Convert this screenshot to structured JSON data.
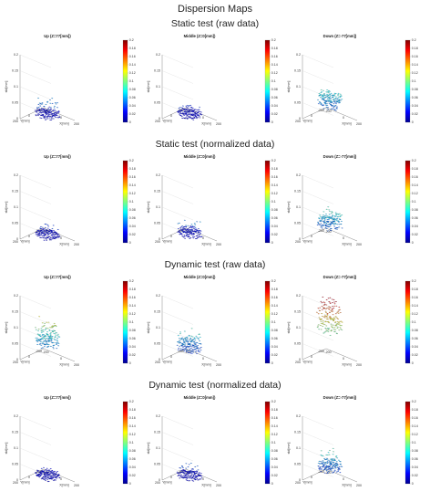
{
  "figure_title": "Dispersion Maps",
  "colors": {
    "colormap": [
      "#00008f",
      "#0000ff",
      "#007fff",
      "#00ffff",
      "#7fff7f",
      "#ffff00",
      "#ff7f00",
      "#ff0000",
      "#7f0000"
    ],
    "axis": "#555555",
    "grid": "#cccccc"
  },
  "colorbar_ticks": [
    "0",
    "0.02",
    "0.04",
    "0.06",
    "0.08",
    "0.1",
    "0.12",
    "0.14",
    "0.16",
    "0.18",
    "0.2"
  ],
  "chart_data": [
    {
      "type": "surface3d",
      "section": "Static test (raw data)",
      "panels": [
        {
          "title": "Up (Z=77[mm])",
          "z_ticks": [
            "0",
            "0.05",
            "0.1",
            "0.15",
            "0.2"
          ],
          "xlabel": "X[mm]",
          "ylabel": "Y[mm]",
          "zlabel": "std[mm]",
          "x_ticks": [
            "-200",
            "0",
            "200"
          ],
          "y_ticks": [
            "-200",
            "0",
            "200"
          ],
          "clim": [
            0,
            0.2
          ],
          "zlim": [
            0,
            0.2
          ],
          "peak": 0.06,
          "mean": 0.02
        },
        {
          "title": "Middle (Z=0[mm])",
          "z_ticks": [
            "0",
            "0.05",
            "0.1",
            "0.15",
            "0.2"
          ],
          "xlabel": "X[mm]",
          "ylabel": "Y[mm]",
          "zlabel": "std[mm]",
          "x_ticks": [
            "-200",
            "0",
            "200"
          ],
          "y_ticks": [
            "-200",
            "0",
            "200"
          ],
          "clim": [
            0,
            0.2
          ],
          "zlim": [
            0,
            0.2
          ],
          "peak": 0.04,
          "mean": 0.02
        },
        {
          "title": "Down (Z=-77[mm])",
          "z_ticks": [
            "0",
            "0.05",
            "0.1",
            "0.15",
            "0.2"
          ],
          "xlabel": "X[mm]",
          "ylabel": "Y[mm]",
          "zlabel": "std[mm]",
          "x_ticks": [
            "-200",
            "0",
            "200"
          ],
          "y_ticks": [
            "-200",
            "0",
            "200"
          ],
          "clim": [
            0,
            0.2
          ],
          "zlim": [
            0,
            0.2
          ],
          "peak": 0.09,
          "mean": 0.06
        }
      ]
    },
    {
      "type": "surface3d",
      "section": "Static test (normalized data)",
      "panels": [
        {
          "title": "Up (Z=77[mm])",
          "z_ticks": [
            "0",
            "0.05",
            "0.1",
            "0.15",
            "0.2"
          ],
          "xlabel": "X[mm]",
          "ylabel": "Y[mm]",
          "zlabel": "std[mm]",
          "x_ticks": [
            "-200",
            "0",
            "200"
          ],
          "y_ticks": [
            "-200",
            "0",
            "200"
          ],
          "clim": [
            0,
            0.2
          ],
          "zlim": [
            0,
            0.2
          ],
          "peak": 0.04,
          "mean": 0.02
        },
        {
          "title": "Middle (Z=0[mm])",
          "z_ticks": [
            "0",
            "0.05",
            "0.1",
            "0.15",
            "0.2"
          ],
          "xlabel": "X[mm]",
          "ylabel": "Y[mm]",
          "zlabel": "std[mm]",
          "x_ticks": [
            "-200",
            "0",
            "200"
          ],
          "y_ticks": [
            "-200",
            "0",
            "200"
          ],
          "clim": [
            0,
            0.2
          ],
          "zlim": [
            0,
            0.2
          ],
          "peak": 0.06,
          "mean": 0.025
        },
        {
          "title": "Down (Z=-77[mm])",
          "z_ticks": [
            "0",
            "0.05",
            "0.1",
            "0.15",
            "0.2"
          ],
          "xlabel": "X[mm]",
          "ylabel": "Y[mm]",
          "zlabel": "std[mm]",
          "x_ticks": [
            "-200",
            "0",
            "200"
          ],
          "y_ticks": [
            "-200",
            "0",
            "200"
          ],
          "clim": [
            0,
            0.2
          ],
          "zlim": [
            0,
            0.2
          ],
          "peak": 0.09,
          "mean": 0.06
        }
      ]
    },
    {
      "type": "surface3d",
      "section": "Dynamic test (raw data)",
      "panels": [
        {
          "title": "Up (Z=77[mm])",
          "z_ticks": [
            "0",
            "0.05",
            "0.1",
            "0.15",
            "0.2"
          ],
          "xlabel": "X[mm]",
          "ylabel": "Y[mm]",
          "zlabel": "std[mm]",
          "x_ticks": [
            "-200",
            "0",
            "200"
          ],
          "y_ticks": [
            "-200",
            "0",
            "200"
          ],
          "clim": [
            0,
            0.2
          ],
          "zlim": [
            0,
            0.2
          ],
          "peak": 0.13,
          "mean": 0.07
        },
        {
          "title": "Middle (Z=0[mm])",
          "z_ticks": [
            "0",
            "0.05",
            "0.1",
            "0.15",
            "0.2"
          ],
          "xlabel": "X[mm]",
          "ylabel": "Y[mm]",
          "zlabel": "std[mm]",
          "x_ticks": [
            "-200",
            "0",
            "200"
          ],
          "y_ticks": [
            "-200",
            "0",
            "200"
          ],
          "clim": [
            0,
            0.2
          ],
          "zlim": [
            0,
            0.2
          ],
          "peak": 0.09,
          "mean": 0.05
        },
        {
          "title": "Down (Z=-77[mm])",
          "z_ticks": [
            "0",
            "0.05",
            "0.1",
            "0.15",
            "0.2"
          ],
          "xlabel": "X[mm]",
          "ylabel": "Y[mm]",
          "zlabel": "std[mm]",
          "x_ticks": [
            "-200",
            "0",
            "200"
          ],
          "y_ticks": [
            "-200",
            "0",
            "200"
          ],
          "clim": [
            0,
            0.2
          ],
          "zlim": [
            0,
            0.2
          ],
          "peak": 0.19,
          "mean": 0.13
        }
      ]
    },
    {
      "type": "surface3d",
      "section": "Dynamic test (normalized data)",
      "panels": [
        {
          "title": "Up (Z=77[mm])",
          "z_ticks": [
            "0",
            "0.05",
            "0.1",
            "0.15",
            "0.2"
          ],
          "xlabel": "X[mm]",
          "ylabel": "Y[mm]",
          "zlabel": "std[mm]",
          "x_ticks": [
            "-200",
            "0",
            "200"
          ],
          "y_ticks": [
            "-200",
            "0",
            "200"
          ],
          "clim": [
            0,
            0.2
          ],
          "zlim": [
            0,
            0.2
          ],
          "peak": 0.03,
          "mean": 0.02
        },
        {
          "title": "Middle (Z=0[mm])",
          "z_ticks": [
            "0",
            "0.05",
            "0.1",
            "0.15",
            "0.2"
          ],
          "xlabel": "X[mm]",
          "ylabel": "Y[mm]",
          "zlabel": "std[mm]",
          "x_ticks": [
            "-200",
            "0",
            "200"
          ],
          "y_ticks": [
            "-200",
            "0",
            "200"
          ],
          "clim": [
            0,
            0.2
          ],
          "zlim": [
            0,
            0.2
          ],
          "peak": 0.05,
          "mean": 0.02
        },
        {
          "title": "Down (Z=-77[mm])",
          "z_ticks": [
            "0",
            "0.05",
            "0.1",
            "0.15",
            "0.2"
          ],
          "xlabel": "X[mm]",
          "ylabel": "Y[mm]",
          "zlabel": "std[mm]",
          "x_ticks": [
            "-200",
            "0",
            "200"
          ],
          "y_ticks": [
            "-200",
            "0",
            "200"
          ],
          "clim": [
            0,
            0.2
          ],
          "zlim": [
            0,
            0.2
          ],
          "peak": 0.1,
          "mean": 0.05
        }
      ]
    }
  ]
}
